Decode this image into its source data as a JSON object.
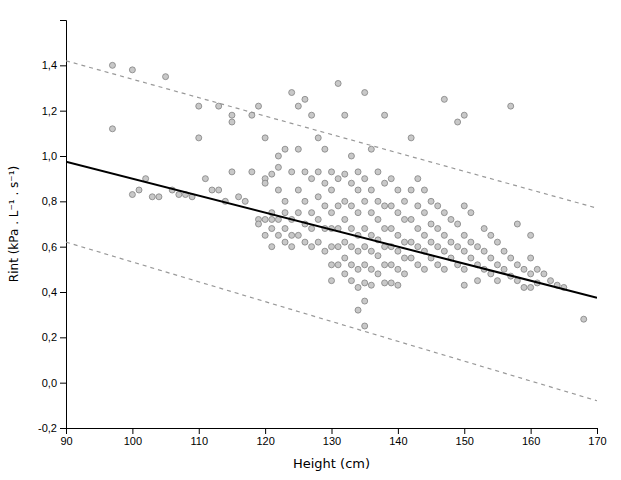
{
  "chart_data": {
    "type": "scatter",
    "xlabel": "Height (cm)",
    "ylabel": "Rint (kPa . L⁻¹ . s⁻¹)",
    "xlim": [
      90,
      170
    ],
    "ylim": [
      -0.2,
      1.6
    ],
    "xticks": [
      90,
      100,
      110,
      120,
      130,
      140,
      150,
      160,
      170
    ],
    "yticks": [
      {
        "value": -0.2,
        "label": "-0,2"
      },
      {
        "value": 0.0,
        "label": "0,0"
      },
      {
        "value": 0.2,
        "label": "0,2"
      },
      {
        "value": 0.4,
        "label": "0,4"
      },
      {
        "value": 0.6,
        "label": "0,6"
      },
      {
        "value": 0.8,
        "label": "0,8"
      },
      {
        "value": 1.0,
        "label": "1,0"
      },
      {
        "value": 1.2,
        "label": "1,2"
      },
      {
        "value": 1.4,
        "label": "1,4"
      },
      {
        "value": 1.6,
        "label": ""
      }
    ],
    "series": [
      {
        "type": "scatter",
        "marker": "circle",
        "color": "#c8c8c8",
        "x": [
          97,
          97,
          100,
          100,
          101,
          102,
          103,
          104,
          105,
          106,
          107,
          108,
          109,
          110,
          110,
          111,
          112,
          113,
          113,
          114,
          115,
          115,
          115,
          116,
          117,
          118,
          118,
          119,
          119,
          119,
          120,
          120,
          120,
          120,
          120,
          121,
          121,
          121,
          121,
          121,
          122,
          122,
          122,
          122,
          122,
          123,
          123,
          123,
          123,
          123,
          124,
          124,
          124,
          124,
          124,
          125,
          125,
          125,
          125,
          125,
          126,
          126,
          126,
          126,
          126,
          127,
          127,
          127,
          127,
          127,
          128,
          128,
          128,
          128,
          128,
          129,
          129,
          129,
          129,
          129,
          130,
          130,
          130,
          130,
          130,
          130,
          130,
          131,
          131,
          131,
          131,
          131,
          131,
          132,
          132,
          132,
          132,
          132,
          132,
          132,
          133,
          133,
          133,
          133,
          133,
          133,
          133,
          134,
          134,
          134,
          134,
          134,
          134,
          134,
          134,
          135,
          135,
          135,
          135,
          135,
          135,
          135,
          135,
          135,
          136,
          136,
          136,
          136,
          136,
          136,
          136,
          137,
          137,
          137,
          137,
          137,
          137,
          138,
          138,
          138,
          138,
          138,
          138,
          138,
          139,
          139,
          139,
          139,
          139,
          139,
          140,
          140,
          140,
          140,
          140,
          140,
          141,
          141,
          141,
          141,
          141,
          142,
          142,
          142,
          142,
          142,
          143,
          143,
          143,
          143,
          143,
          144,
          144,
          144,
          144,
          144,
          145,
          145,
          145,
          145,
          146,
          146,
          146,
          146,
          147,
          147,
          147,
          147,
          147,
          148,
          148,
          148,
          149,
          149,
          149,
          149,
          150,
          150,
          150,
          150,
          150,
          150,
          151,
          151,
          151,
          152,
          152,
          152,
          153,
          153,
          153,
          154,
          154,
          154,
          155,
          155,
          155,
          156,
          156,
          157,
          157,
          157,
          158,
          158,
          158,
          159,
          159,
          160,
          160,
          160,
          160,
          161,
          161,
          162,
          163,
          164,
          165,
          168
        ],
        "values": [
          1.4,
          1.12,
          1.38,
          0.83,
          0.85,
          0.9,
          0.82,
          0.82,
          1.35,
          0.85,
          0.83,
          0.83,
          0.82,
          1.22,
          1.08,
          0.9,
          0.85,
          1.22,
          0.85,
          0.8,
          1.18,
          1.15,
          0.93,
          0.82,
          0.8,
          1.18,
          0.93,
          1.22,
          0.72,
          0.7,
          1.08,
          0.9,
          0.88,
          0.72,
          0.65,
          0.92,
          0.75,
          0.72,
          0.68,
          0.6,
          1.0,
          0.95,
          0.85,
          0.72,
          0.65,
          1.03,
          0.8,
          0.75,
          0.68,
          0.62,
          1.28,
          0.93,
          0.72,
          0.65,
          0.6,
          1.22,
          1.03,
          0.85,
          0.75,
          0.65,
          1.25,
          0.93,
          0.8,
          0.7,
          0.62,
          1.18,
          0.9,
          0.75,
          0.68,
          0.6,
          1.08,
          0.93,
          0.82,
          0.72,
          0.62,
          1.03,
          0.88,
          0.78,
          0.68,
          0.58,
          0.93,
          0.85,
          0.75,
          0.68,
          0.6,
          0.52,
          0.45,
          1.32,
          0.9,
          0.78,
          0.68,
          0.6,
          0.52,
          1.18,
          0.92,
          0.8,
          0.72,
          0.62,
          0.55,
          0.48,
          1.0,
          0.88,
          0.78,
          0.68,
          0.6,
          0.52,
          0.45,
          0.93,
          0.85,
          0.75,
          0.65,
          0.58,
          0.5,
          0.42,
          0.32,
          1.28,
          0.9,
          0.8,
          0.68,
          0.6,
          0.52,
          0.44,
          0.36,
          0.25,
          1.03,
          0.85,
          0.75,
          0.65,
          0.58,
          0.5,
          0.43,
          0.93,
          0.8,
          0.72,
          0.63,
          0.56,
          0.48,
          1.18,
          0.88,
          0.78,
          0.68,
          0.6,
          0.52,
          0.44,
          0.9,
          0.78,
          0.68,
          0.6,
          0.52,
          0.44,
          0.85,
          0.75,
          0.65,
          0.58,
          0.5,
          0.43,
          0.8,
          0.72,
          0.62,
          0.55,
          0.48,
          1.08,
          0.85,
          0.72,
          0.62,
          0.55,
          0.9,
          0.78,
          0.68,
          0.6,
          0.52,
          0.85,
          0.75,
          0.65,
          0.58,
          0.5,
          0.8,
          0.7,
          0.62,
          0.55,
          0.78,
          0.68,
          0.6,
          0.52,
          1.25,
          0.75,
          0.65,
          0.58,
          0.5,
          0.72,
          0.62,
          0.55,
          1.15,
          0.7,
          0.6,
          0.52,
          1.18,
          0.78,
          0.65,
          0.58,
          0.5,
          0.43,
          0.75,
          0.62,
          0.55,
          0.6,
          0.52,
          0.45,
          0.68,
          0.58,
          0.5,
          0.65,
          0.55,
          0.48,
          0.62,
          0.52,
          0.45,
          0.58,
          0.5,
          0.55,
          0.47,
          1.22,
          0.7,
          0.52,
          0.45,
          0.5,
          0.42,
          0.65,
          0.55,
          0.48,
          0.42,
          0.5,
          0.44,
          0.48,
          0.45,
          0.43,
          0.42,
          0.28
        ]
      },
      {
        "type": "line",
        "line_style": "solid",
        "color": "#000000",
        "x": [
          90,
          170
        ],
        "values": [
          0.975,
          0.375
        ]
      },
      {
        "type": "line",
        "line_style": "dashed",
        "color": "#999999",
        "x": [
          90,
          170
        ],
        "values": [
          1.42,
          0.77
        ]
      },
      {
        "type": "line",
        "line_style": "dashed",
        "color": "#999999",
        "x": [
          90,
          170
        ],
        "values": [
          0.62,
          -0.08
        ]
      }
    ]
  }
}
